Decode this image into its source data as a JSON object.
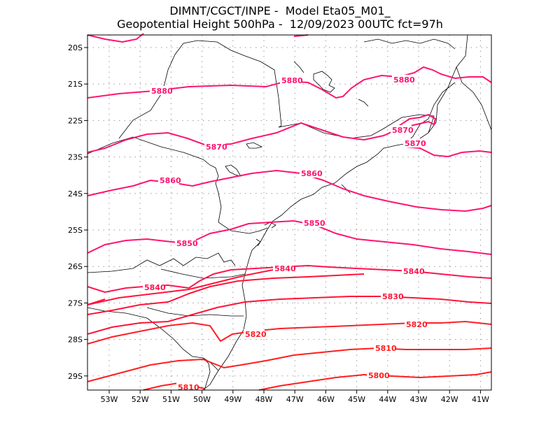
{
  "title": {
    "line1": "DIMNT/CGCT/INPE -  Model Eta05_M01_",
    "line2": "Geopotential Height 500hPa -  12/09/2023 00UTC fct=97h"
  },
  "map": {
    "lat_ticks": [
      "20S",
      "21S",
      "22S",
      "23S",
      "24S",
      "25S",
      "26S",
      "27S",
      "28S",
      "29S"
    ],
    "lon_ticks": [
      "53W",
      "52W",
      "51W",
      "50W",
      "49W",
      "48W",
      "47W",
      "46W",
      "45W",
      "44W",
      "43W",
      "42W",
      "41W"
    ],
    "colors": {
      "contour_pink": "#ff1470",
      "contour_red": "#ff1e1e",
      "coast": "#000000",
      "grid": "#9a9a9a"
    },
    "contours": [
      {
        "id": "c5880",
        "value": "5880",
        "color": "#ff1470",
        "labels": [
          "5880",
          "5880",
          "5880"
        ]
      },
      {
        "id": "c5870",
        "value": "5870",
        "color": "#ff1470",
        "labels": [
          "5870",
          "5870",
          "5870"
        ]
      },
      {
        "id": "c5860",
        "value": "5860",
        "color": "#ff1470",
        "labels": [
          "5860",
          "5860"
        ]
      },
      {
        "id": "c5850",
        "value": "5850",
        "color": "#ff1470",
        "labels": [
          "5850",
          "5850"
        ]
      },
      {
        "id": "c5840",
        "value": "5840",
        "color": "#ff1450",
        "labels": [
          "5840",
          "5840",
          "5840"
        ]
      },
      {
        "id": "c5830",
        "value": "5830",
        "color": "#ff1438",
        "labels": [
          "5830"
        ]
      },
      {
        "id": "c5820",
        "value": "5820",
        "color": "#ff1e28",
        "labels": [
          "5820",
          "5820"
        ]
      },
      {
        "id": "c5810",
        "value": "5810",
        "color": "#ff1e1e",
        "labels": [
          "5810",
          "5810"
        ]
      },
      {
        "id": "c5800",
        "value": "5800",
        "color": "#ff1e1e",
        "labels": [
          "5800"
        ]
      }
    ]
  }
}
